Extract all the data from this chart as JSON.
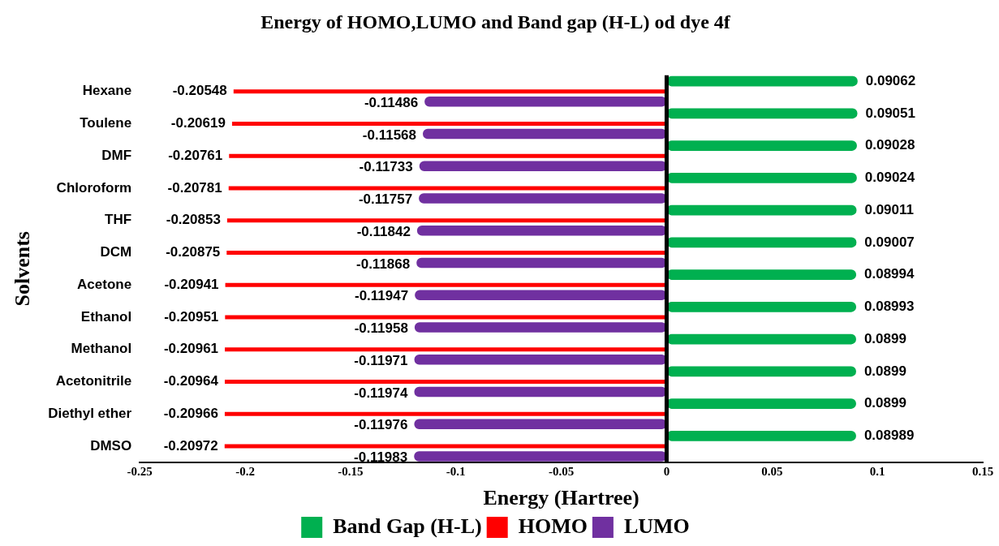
{
  "chart_data": {
    "type": "bar",
    "orientation": "horizontal",
    "title": "Energy of HOMO,LUMO and Band gap (H-L) od dye 4f",
    "xlabel": "Energy (Hartree)",
    "ylabel": "Solvents",
    "categories": [
      "Hexane",
      "Toulene",
      "DMF",
      "Chloroform",
      "THF",
      "DCM",
      "Acetone",
      "Ethanol",
      "Methanol",
      "Acetonitrile",
      "Diethyl ether",
      "DMSO"
    ],
    "series": [
      {
        "name": "Band Gap (H-L)",
        "color": "#00b050",
        "values": [
          0.09062,
          0.09051,
          0.09028,
          0.09024,
          0.09011,
          0.09007,
          0.08994,
          0.08993,
          0.0899,
          0.0899,
          0.0899,
          0.08989
        ]
      },
      {
        "name": "HOMO",
        "color": "#ff0000",
        "values": [
          -0.20548,
          -0.20619,
          -0.20761,
          -0.20781,
          -0.20853,
          -0.20875,
          -0.20941,
          -0.20951,
          -0.20961,
          -0.20964,
          -0.20966,
          -0.20972
        ]
      },
      {
        "name": "LUMO",
        "color": "#7030a0",
        "values": [
          -0.11486,
          -0.11568,
          -0.11733,
          -0.11757,
          -0.11842,
          -0.11868,
          -0.11947,
          -0.11958,
          -0.11971,
          -0.11974,
          -0.11976,
          -0.11983
        ]
      }
    ],
    "xlim": [
      -0.25,
      0.15
    ],
    "xticks": [
      -0.25,
      -0.2,
      -0.15,
      -0.1,
      -0.05,
      0,
      0.05,
      0.1,
      0.15
    ],
    "ref_lines": [
      {
        "axis": "x",
        "value": 0,
        "color": "#000000"
      }
    ],
    "data_labels": true,
    "legend": "bottom",
    "grid": false
  }
}
